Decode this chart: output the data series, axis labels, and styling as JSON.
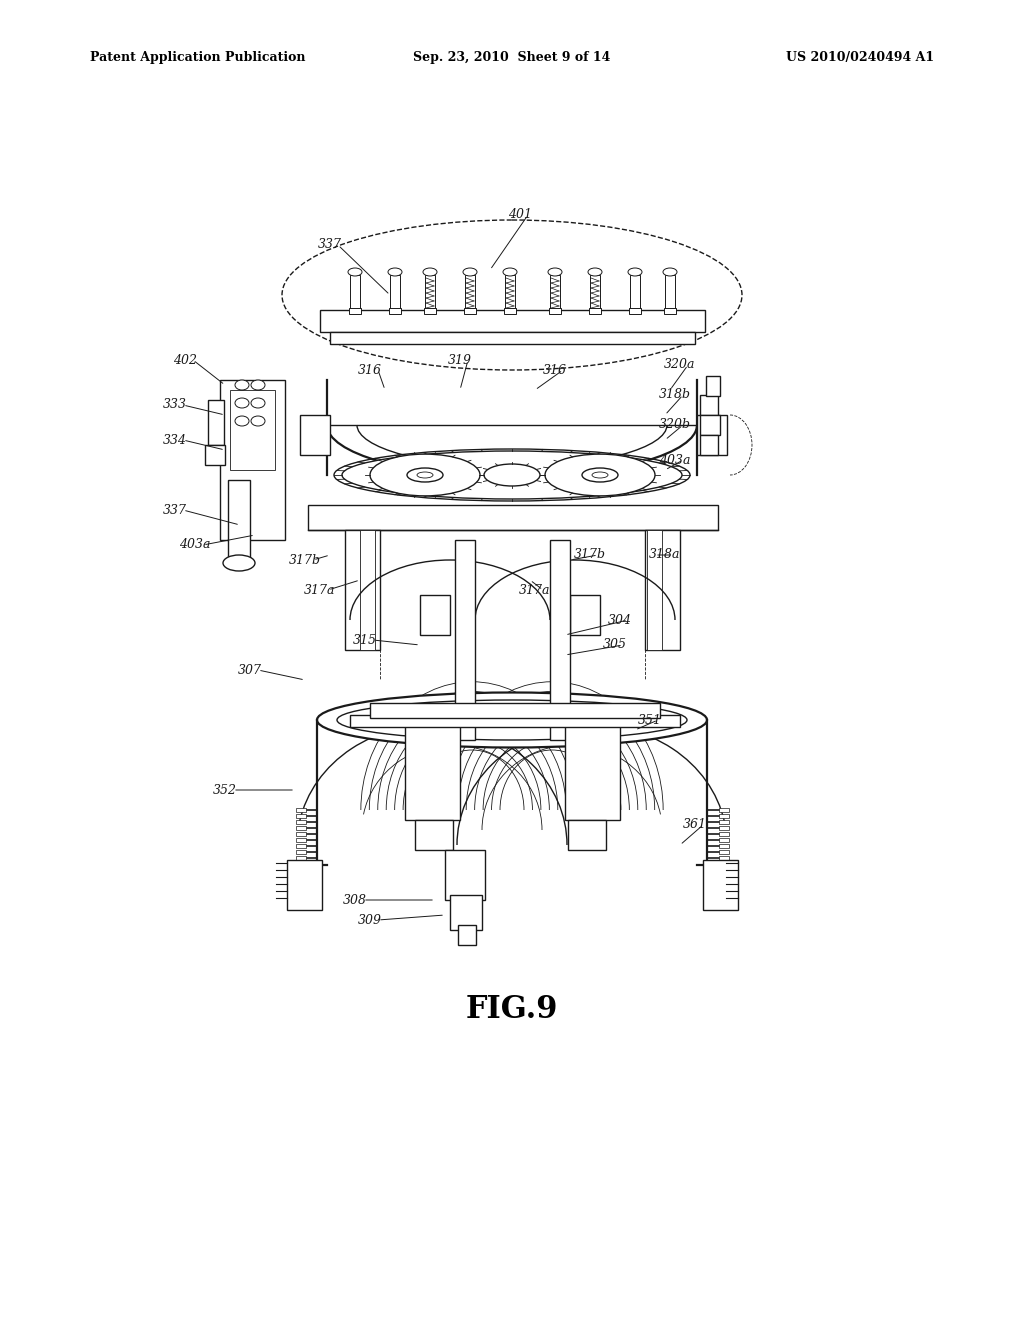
{
  "bg_color": "#ffffff",
  "header_left": "Patent Application Publication",
  "header_center": "Sep. 23, 2010  Sheet 9 of 14",
  "header_right": "US 2010/0240494 A1",
  "fig_label": "FIG.9",
  "color": "#1a1a1a",
  "lw_main": 1.0,
  "lw_thin": 0.6,
  "lw_thick": 1.6,
  "labels": [
    [
      "401",
      520,
      215,
      490,
      270
    ],
    [
      "337",
      330,
      245,
      390,
      295
    ],
    [
      "402",
      185,
      360,
      225,
      385
    ],
    [
      "333",
      175,
      405,
      225,
      415
    ],
    [
      "334",
      175,
      440,
      225,
      450
    ],
    [
      "337",
      175,
      510,
      240,
      525
    ],
    [
      "403a",
      195,
      545,
      255,
      535
    ],
    [
      "316",
      370,
      370,
      385,
      390
    ],
    [
      "319",
      460,
      360,
      460,
      390
    ],
    [
      "316",
      555,
      370,
      535,
      390
    ],
    [
      "320a",
      680,
      365,
      670,
      390
    ],
    [
      "318b",
      675,
      395,
      665,
      415
    ],
    [
      "320b",
      675,
      425,
      665,
      440
    ],
    [
      "403a",
      675,
      460,
      665,
      470
    ],
    [
      "317b",
      305,
      560,
      330,
      555
    ],
    [
      "317a",
      320,
      590,
      360,
      580
    ],
    [
      "317a",
      535,
      590,
      530,
      580
    ],
    [
      "317b",
      590,
      555,
      570,
      560
    ],
    [
      "318a",
      665,
      555,
      655,
      555
    ],
    [
      "304",
      620,
      620,
      565,
      635
    ],
    [
      "315",
      365,
      640,
      420,
      645
    ],
    [
      "305",
      615,
      645,
      565,
      655
    ],
    [
      "307",
      250,
      670,
      305,
      680
    ],
    [
      "351",
      650,
      720,
      635,
      730
    ],
    [
      "352",
      225,
      790,
      295,
      790
    ],
    [
      "361",
      695,
      825,
      680,
      845
    ],
    [
      "308",
      355,
      900,
      435,
      900
    ],
    [
      "309",
      370,
      920,
      445,
      915
    ]
  ]
}
